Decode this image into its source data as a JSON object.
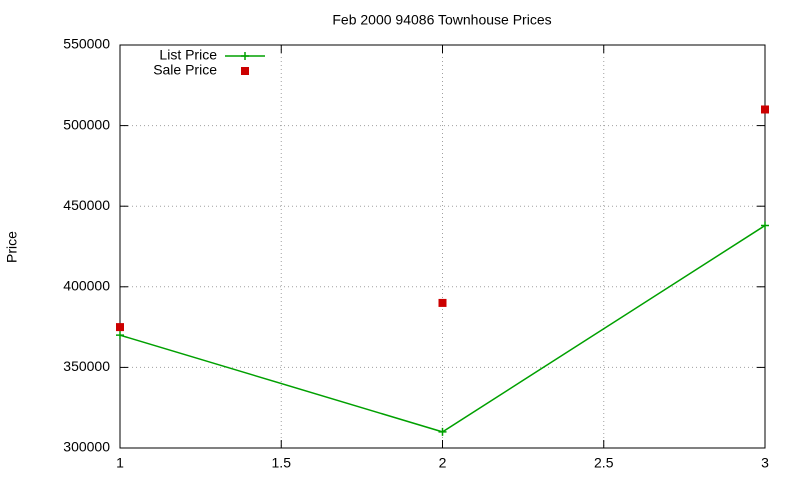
{
  "chart_data": {
    "type": "line",
    "title": "Feb 2000 94086 Townhouse Prices",
    "y_label": "Price",
    "x": [
      1,
      2,
      3
    ],
    "series": [
      {
        "name": "List Price",
        "color": "#00a000",
        "style": "linespoints",
        "values": [
          370000,
          310000,
          438000
        ]
      },
      {
        "name": "Sale Price",
        "color": "#cc0000",
        "style": "points",
        "values": [
          375000,
          390000,
          510000
        ]
      }
    ],
    "xlim": [
      1,
      3
    ],
    "xticks": [
      1,
      1.5,
      2,
      2.5,
      3
    ],
    "ylim": [
      300000,
      550000
    ],
    "yticks": [
      300000,
      350000,
      400000,
      450000,
      500000,
      550000
    ],
    "grid": true,
    "legend": "top-left"
  }
}
